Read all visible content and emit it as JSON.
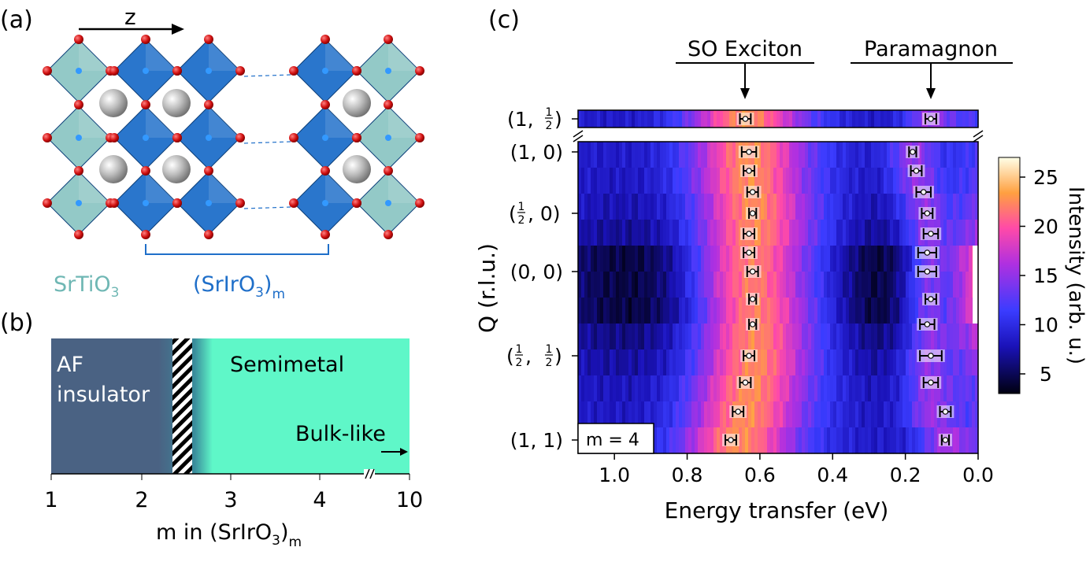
{
  "panels": {
    "a": "(a)",
    "b": "(b)",
    "c": "(c)"
  },
  "panel_a": {
    "axis_label": "z",
    "label_sto": "SrTiO",
    "label_sto_sub": "3",
    "label_sio": "(SrIrO",
    "label_sio_sub1": "3",
    "label_sio_close": ")",
    "label_sio_sub2": "m",
    "colors": {
      "sto": "#6fb7b4",
      "sio": "#1f6fc9",
      "oxygen": "#d01010",
      "sr": "#c9c9c9"
    }
  },
  "panel_b": {
    "region_af_line1": "AF",
    "region_af_line2": "insulator",
    "region_semimetal": "Semimetal",
    "bulk_label": "Bulk-like",
    "ticks": [
      "1",
      "2",
      "3",
      "4",
      "10"
    ],
    "xlabel_main": "m in (SrIrO",
    "xlabel_sub1": "3",
    "xlabel_close": ")",
    "xlabel_sub2": "m",
    "colors": {
      "af": "#4a6283",
      "semimetal": "#5ff7c8"
    }
  },
  "chart_data": {
    "type": "heatmap",
    "title_annotations": [
      "SO Exciton",
      "Paramagnon"
    ],
    "annotation_energy": [
      0.64,
      0.13
    ],
    "xlabel": "Energy transfer (eV)",
    "ylabel": "Q (r.l.u.)",
    "xlim": [
      1.1,
      0.0
    ],
    "x_ticks": [
      "1.0",
      "0.8",
      "0.6",
      "0.4",
      "0.2",
      "0.0"
    ],
    "x_tick_values": [
      1.0,
      0.8,
      0.6,
      0.4,
      0.2,
      0.0
    ],
    "y_ticks": [
      "(1, 0)",
      "(1/2, 0)",
      "(0, 0)",
      "(1/2, 1/2)",
      "(1, 1)"
    ],
    "y_tick_rows": [
      0,
      2.5,
      5,
      8,
      11
    ],
    "top_row_label": "(1, 1/2)",
    "inset_label": "m = 4",
    "rows": 12,
    "so_exciton_peaks": [
      0.64,
      0.63,
      0.63,
      0.62,
      0.62,
      0.63,
      0.63,
      0.62,
      0.62,
      0.62,
      0.63,
      0.64,
      0.66,
      0.68
    ],
    "so_exciton_errors": [
      0.015,
      0.02,
      0.015,
      0.015,
      0.01,
      0.015,
      0.015,
      0.015,
      0.01,
      0.01,
      0.015,
      0.015,
      0.015,
      0.015
    ],
    "paramagnon_peaks": [
      0.13,
      0.18,
      0.17,
      0.15,
      0.14,
      0.13,
      0.14,
      0.14,
      0.13,
      0.14,
      0.13,
      0.13,
      0.09,
      0.09
    ],
    "paramagnon_errors": [
      0.015,
      0.01,
      0.015,
      0.02,
      0.015,
      0.02,
      0.025,
      0.025,
      0.015,
      0.02,
      0.03,
      0.02,
      0.015,
      0.01
    ],
    "colorbar": {
      "label": "Intensity (arb. u.)",
      "ticks": [
        "5",
        "10",
        "15",
        "20",
        "25"
      ],
      "tick_values": [
        5,
        10,
        15,
        20,
        25
      ],
      "range": [
        3,
        27
      ]
    }
  }
}
